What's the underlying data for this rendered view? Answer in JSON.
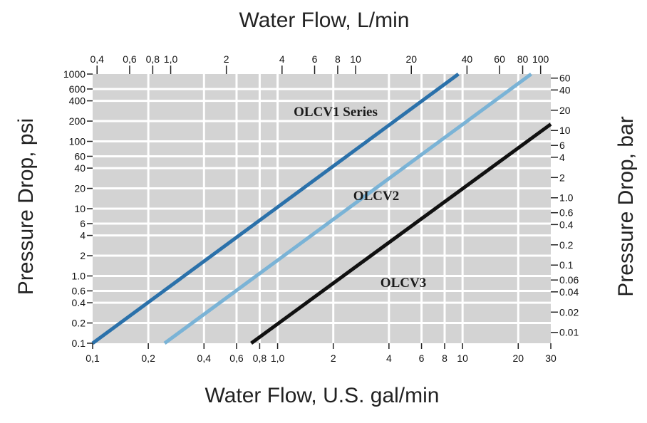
{
  "chart_data": {
    "type": "line",
    "title": "",
    "x_scale": "log",
    "y_scale": "log",
    "grid": true,
    "plot_background": "#d3d3d3",
    "grid_color": "#ffffff",
    "xlabel_bottom": "Water Flow, U.S. gal/min",
    "xlabel_top": "Water Flow, L/min",
    "ylabel_left": "Pressure Drop, psi",
    "ylabel_right": "Pressure Drop, bar",
    "xlim": [
      0.1,
      30
    ],
    "ylim": [
      0.1,
      1000
    ],
    "x_ticks": [
      0.1,
      0.2,
      0.4,
      0.6,
      0.8,
      1.0,
      2,
      4,
      6,
      8,
      10,
      20,
      30
    ],
    "x_tick_labels": [
      "0,1",
      "0,2",
      "0,4",
      "0,6",
      "0,8",
      "1,0",
      "2",
      "4",
      "6",
      "8",
      "10",
      "20",
      "30"
    ],
    "x_top_ticks": [
      0.4,
      0.6,
      0.8,
      1.0,
      2,
      4,
      6,
      8,
      10,
      20,
      40,
      60,
      80,
      100
    ],
    "x_top_tick_labels": [
      "0,4",
      "0,6",
      "0,8",
      "1,0",
      "2",
      "4",
      "6",
      "8",
      "10",
      "20",
      "40",
      "60",
      "80",
      "100"
    ],
    "y_ticks": [
      0.1,
      0.2,
      0.4,
      0.6,
      1.0,
      2,
      4,
      6,
      10,
      20,
      40,
      60,
      100,
      200,
      400,
      600,
      1000
    ],
    "y_tick_labels": [
      "0.1",
      "0.2",
      "0.4",
      "0.6",
      "1.0",
      "2",
      "4",
      "6",
      "10",
      "20",
      "40",
      "60",
      "100",
      "200",
      "400",
      "600",
      "1000"
    ],
    "y_right_ticks": [
      0.01,
      0.02,
      0.04,
      0.06,
      0.1,
      0.2,
      0.4,
      0.6,
      1.0,
      2,
      4,
      6,
      10,
      20,
      40,
      60
    ],
    "y_right_tick_labels": [
      "0.01",
      "0.02",
      "0.04",
      "0.06",
      "0.1",
      "0.2",
      "0.4",
      "0.6",
      "1.0",
      "2",
      "4",
      "6",
      "10",
      "20",
      "40",
      "60"
    ],
    "series": [
      {
        "name": "OLCV1 Series",
        "color": "#2b71aa",
        "x": [
          0.1,
          9.5
        ],
        "y": [
          0.1,
          1000
        ]
      },
      {
        "name": "OLCV2",
        "color": "#7ab3d6",
        "x": [
          0.245,
          23.5
        ],
        "y": [
          0.1,
          1000
        ]
      },
      {
        "name": "OLCV3",
        "color": "#111111",
        "x": [
          0.72,
          30
        ],
        "y": [
          0.1,
          180
        ]
      }
    ]
  }
}
